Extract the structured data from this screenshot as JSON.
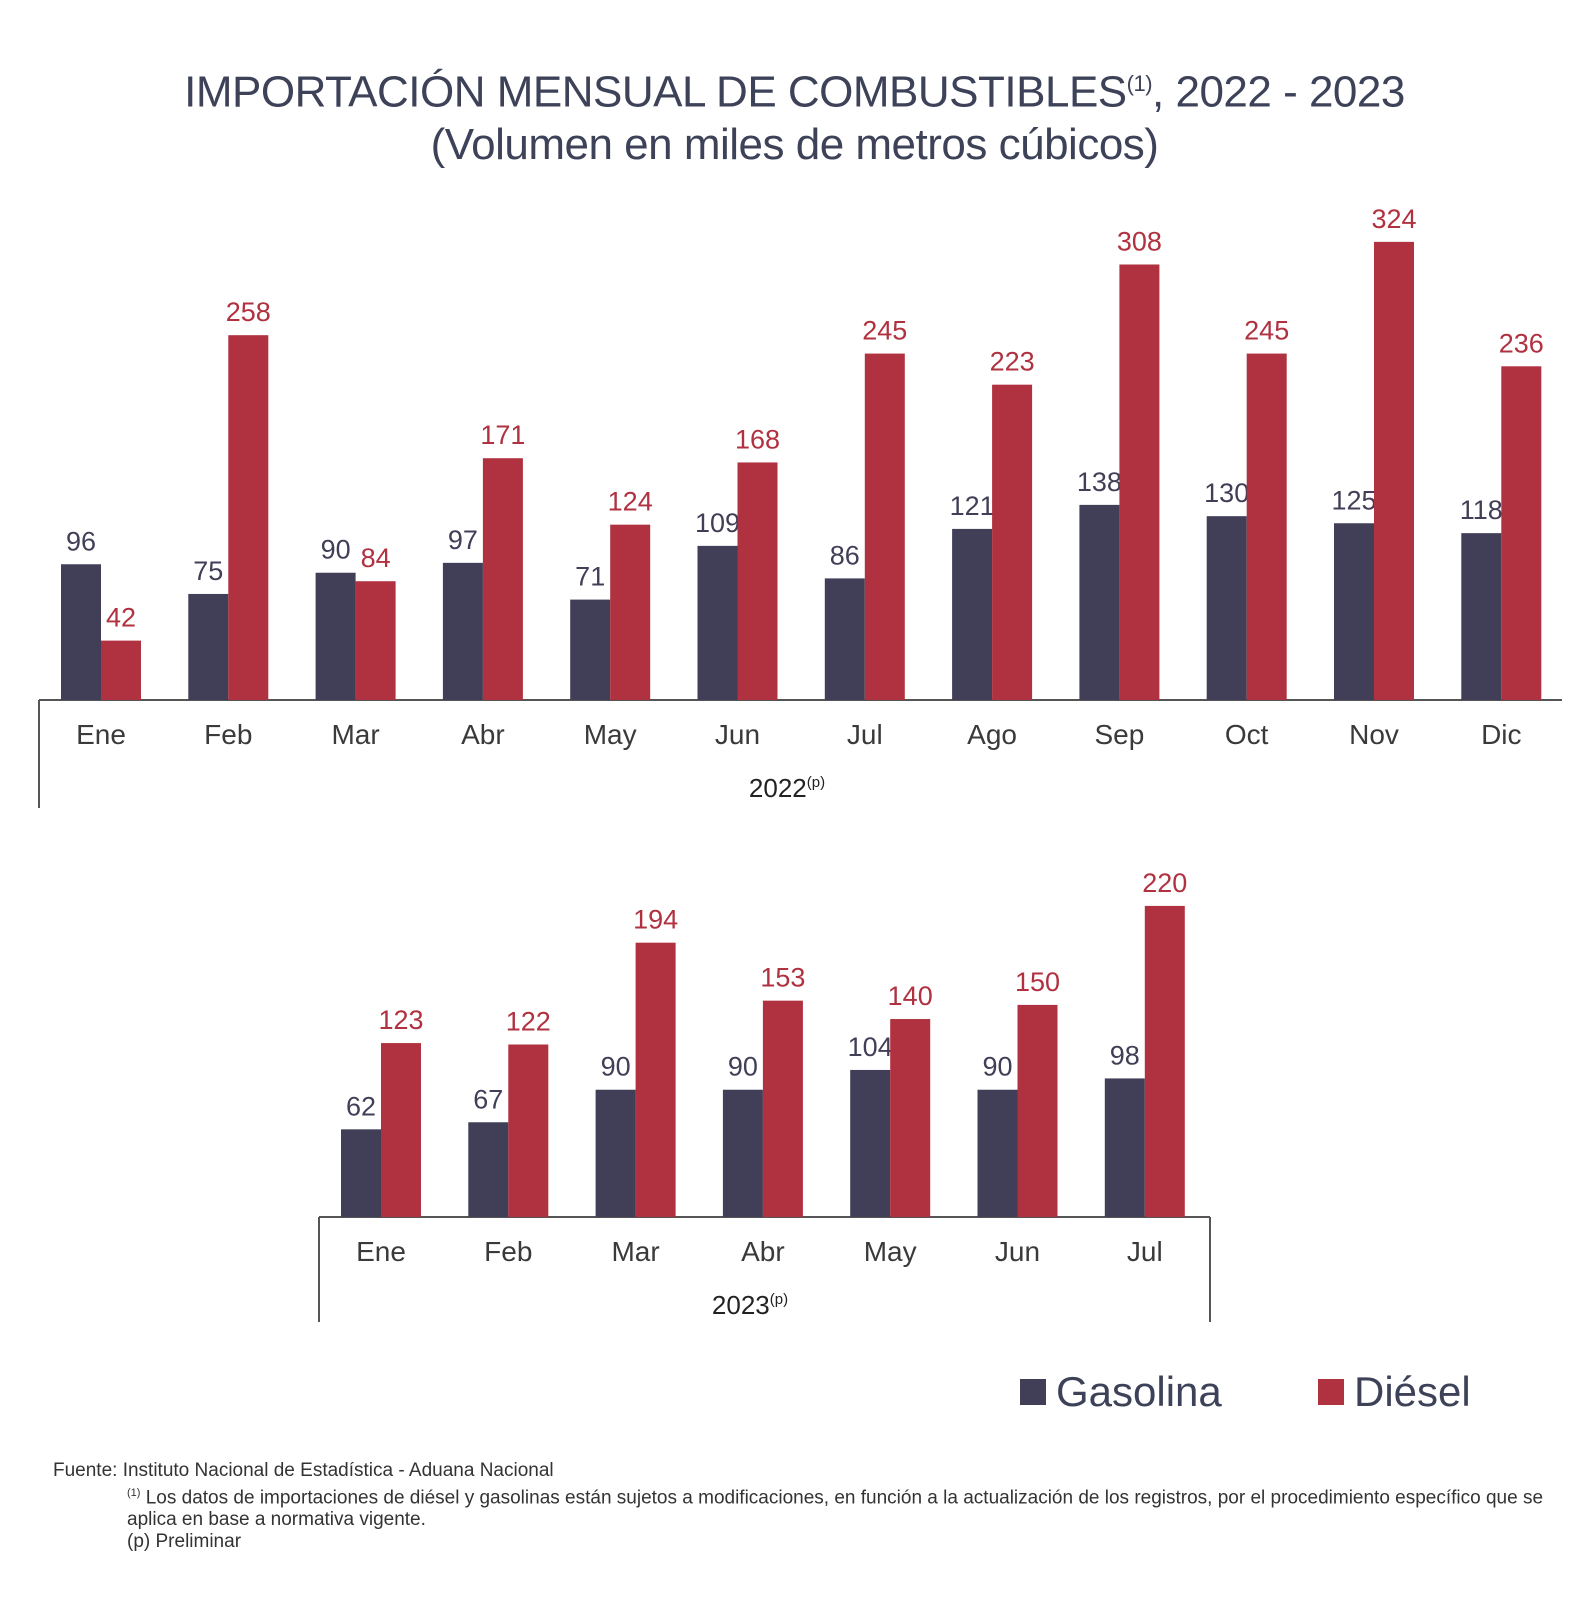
{
  "title": {
    "line1_main": "IMPORTACIÓN MENSUAL DE COMBUSTIBLES",
    "line1_sup": "(1)",
    "line1_tail": ", 2022 - 2023",
    "line2": "(Volumen en miles de metros cúbicos)"
  },
  "colors": {
    "gasolina": "#403f57",
    "diesel": "#b0313f",
    "axis": "#555555"
  },
  "legend": {
    "gasolina": "Gasolina",
    "diesel": "Diésel"
  },
  "footer": {
    "source": "Fuente: Instituto Nacional de Estadística - Aduana Nacional",
    "note1_sup": "(1)",
    "note1": " Los datos de importaciones de diésel y gasolinas están sujetos a modificaciones, en función a la actualización de los registros, por el procedimiento específico que se aplica en base a normativa vigente.",
    "note2": "(p) Preliminar"
  },
  "chart_data": [
    {
      "type": "bar",
      "year_label": "2022",
      "year_sup": "(p)",
      "categories": [
        "Ene",
        "Feb",
        "Mar",
        "Abr",
        "May",
        "Jun",
        "Jul",
        "Ago",
        "Sep",
        "Oct",
        "Nov",
        "Dic"
      ],
      "series": [
        {
          "name": "Gasolina",
          "values": [
            96,
            75,
            90,
            97,
            71,
            109,
            86,
            121,
            138,
            130,
            125,
            118
          ]
        },
        {
          "name": "Diésel",
          "values": [
            42,
            258,
            84,
            171,
            124,
            168,
            245,
            223,
            308,
            245,
            324,
            236
          ]
        }
      ]
    },
    {
      "type": "bar",
      "year_label": "2023",
      "year_sup": "(p)",
      "categories": [
        "Ene",
        "Feb",
        "Mar",
        "Abr",
        "May",
        "Jun",
        "Jul"
      ],
      "series": [
        {
          "name": "Gasolina",
          "values": [
            62,
            67,
            90,
            90,
            104,
            90,
            98
          ]
        },
        {
          "name": "Diésel",
          "values": [
            123,
            122,
            194,
            153,
            140,
            150,
            220
          ]
        }
      ]
    }
  ]
}
